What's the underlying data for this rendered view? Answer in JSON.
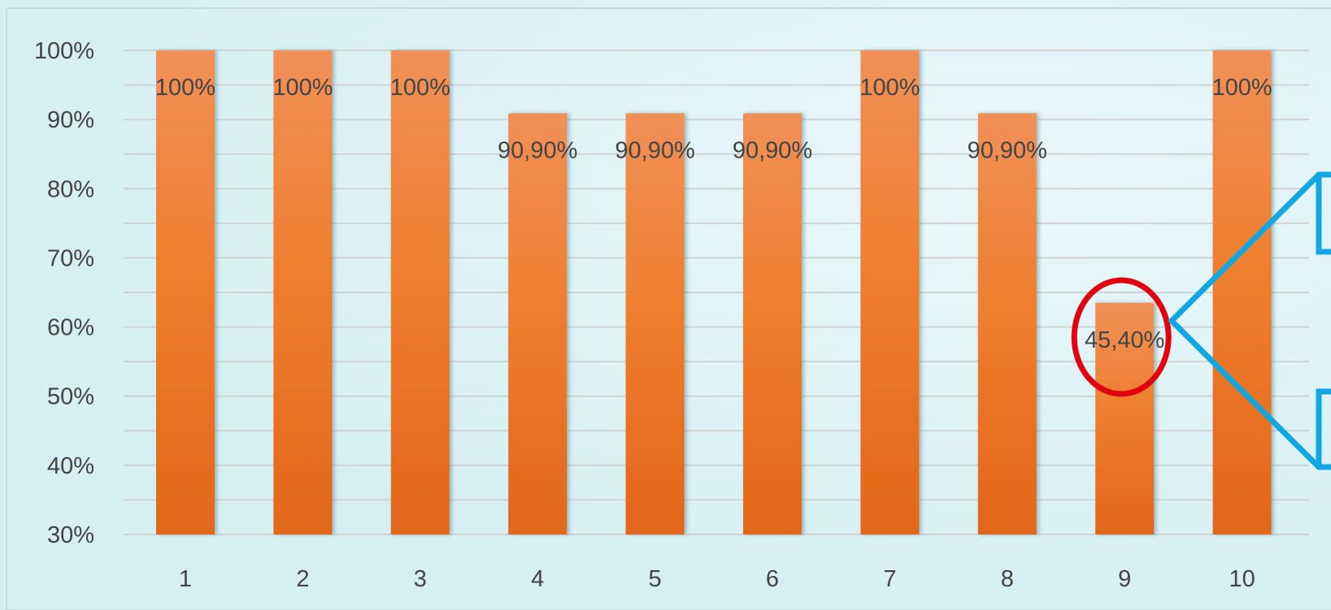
{
  "chart_data": {
    "type": "bar",
    "categories": [
      "1",
      "2",
      "3",
      "4",
      "5",
      "6",
      "7",
      "8",
      "9",
      "10"
    ],
    "values": [
      100,
      100,
      100,
      90.9,
      90.9,
      90.9,
      100,
      90.9,
      45.4,
      100
    ],
    "data_labels": [
      "100%",
      "100%",
      "100%",
      "90,90%",
      "90,90%",
      "90,90%",
      "100%",
      "90,90%",
      "45,40%",
      "100%"
    ],
    "y_ticks": [
      "30%",
      "40%",
      "50%",
      "60%",
      "70%",
      "80%",
      "90%",
      "100%"
    ],
    "ylim": [
      30,
      100
    ],
    "grid": true,
    "legend": "none",
    "title": "",
    "xlabel": "",
    "ylabel": "",
    "highlight": {
      "category": "9",
      "shape": "red-ellipse",
      "callout": "blue-arrow-right"
    },
    "colors": {
      "bar_top": "#f09058",
      "bar_mid": "#ef7f2e",
      "bar_bottom": "#e2661a",
      "highlight_ring": "#e00010",
      "callout": "#12a6e2",
      "gridline": "#cfd3d3",
      "background": "#dcf3f6",
      "text": "#444444"
    }
  }
}
